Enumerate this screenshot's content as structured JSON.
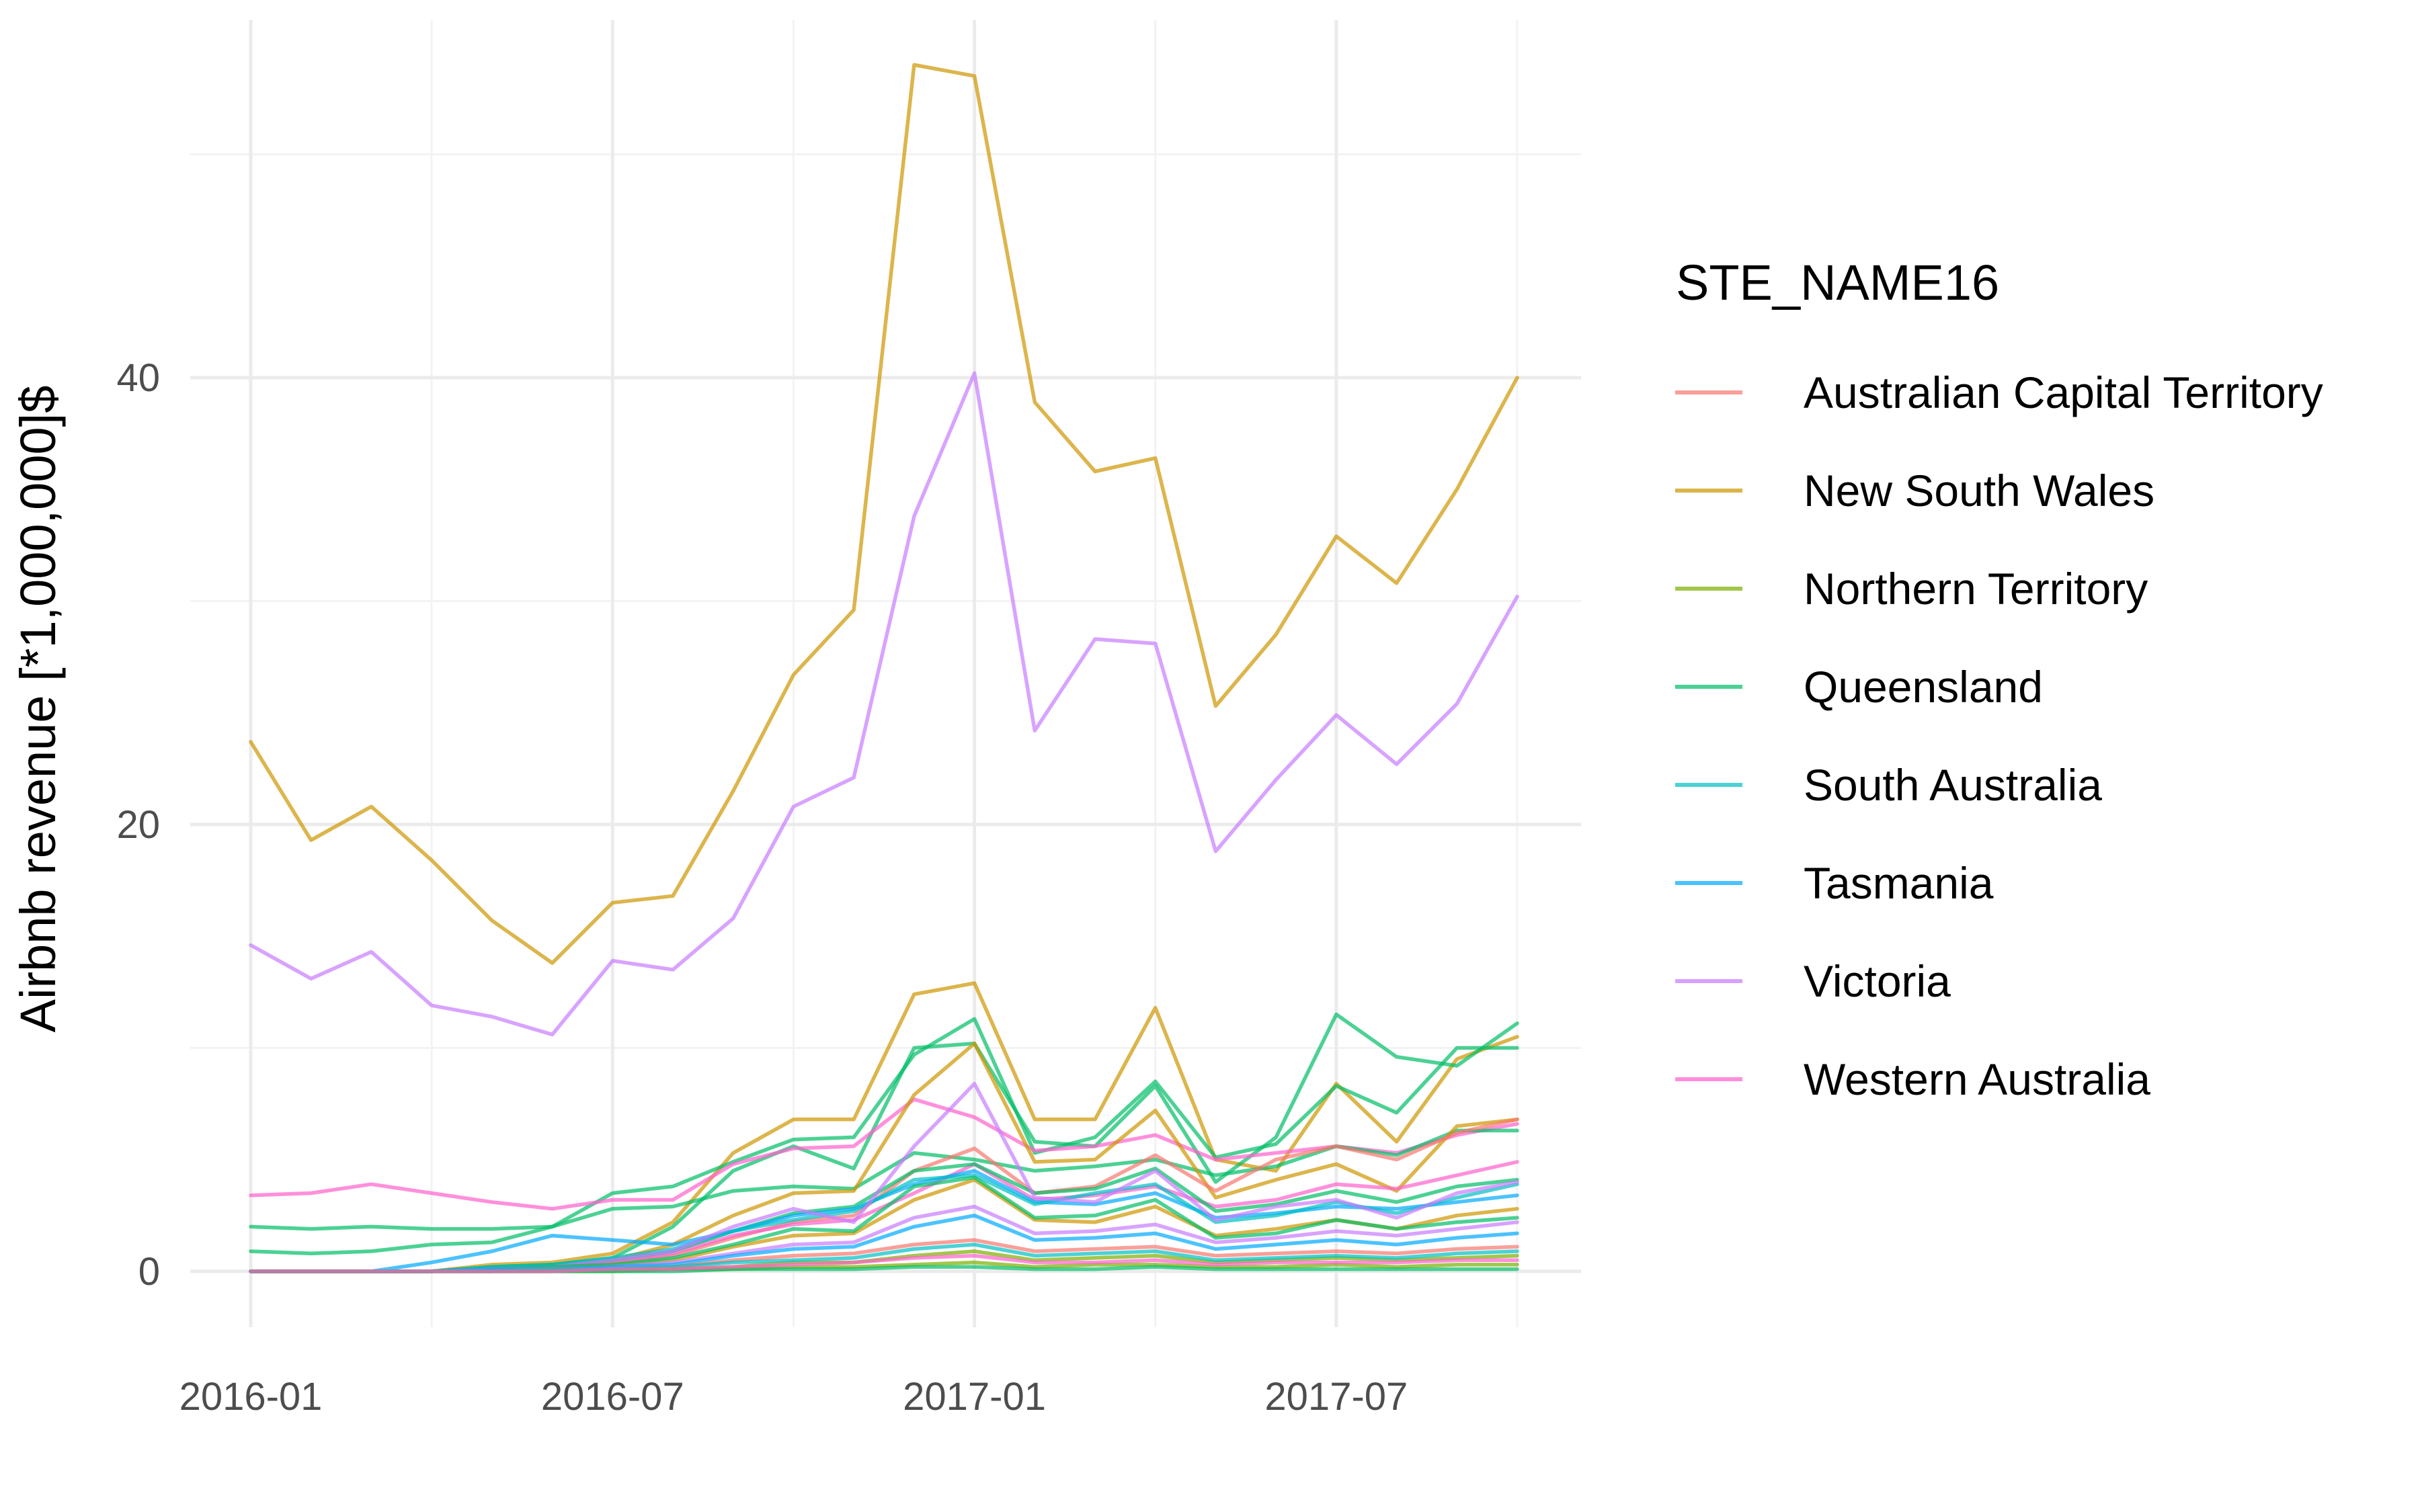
{
  "chart_data": {
    "type": "line",
    "title": "",
    "xlabel": "",
    "ylabel": "Airbnb revenue [*1,000,000]$",
    "x": [
      "2016-01",
      "2016-02",
      "2016-03",
      "2016-04",
      "2016-05",
      "2016-06",
      "2016-07",
      "2016-08",
      "2016-09",
      "2016-10",
      "2016-11",
      "2016-12",
      "2017-01",
      "2017-02",
      "2017-03",
      "2017-04",
      "2017-05",
      "2017-06",
      "2017-07",
      "2017-08",
      "2017-09",
      "2017-10"
    ],
    "x_tick_labels": [
      "2016-01",
      "2016-07",
      "2017-01",
      "2017-07"
    ],
    "y_ticks": [
      0,
      20,
      40
    ],
    "ylim": [
      -2.5,
      56
    ],
    "grid": true,
    "legend": {
      "title": "STE_NAME16",
      "placement": "right",
      "entries": [
        {
          "name": "Australian Capital Territory",
          "color": "#F8766D"
        },
        {
          "name": "New South Wales",
          "color": "#CD9600"
        },
        {
          "name": "Northern Territory",
          "color": "#7CAE00"
        },
        {
          "name": "Queensland",
          "color": "#00BE67"
        },
        {
          "name": "South Australia",
          "color": "#00BFC4"
        },
        {
          "name": "Tasmania",
          "color": "#00A9FF"
        },
        {
          "name": "Victoria",
          "color": "#C77CFF"
        },
        {
          "name": "Western Australia",
          "color": "#FF61CC"
        }
      ]
    },
    "series": [
      {
        "state": "New South Wales",
        "color": "#CD9600",
        "values": [
          23.7,
          19.3,
          20.8,
          18.4,
          15.7,
          13.8,
          16.5,
          16.8,
          21.5,
          26.7,
          29.6,
          54,
          53.5,
          38.9,
          35.8,
          36.4,
          25.3,
          28.5,
          32.9,
          30.8,
          35,
          40
        ]
      },
      {
        "state": "Victoria",
        "color": "#C77CFF",
        "values": [
          14.6,
          13.1,
          14.3,
          11.9,
          11.4,
          10.6,
          13.9,
          13.5,
          15.8,
          20.8,
          22.1,
          33.8,
          40.2,
          24.2,
          28.3,
          28.1,
          18.8,
          22,
          24.9,
          22.7,
          25.4,
          30.2
        ]
      },
      {
        "state": "New South Wales",
        "color": "#CD9600",
        "values": [
          0,
          0,
          0,
          0,
          0.3,
          0.4,
          0.8,
          2.2,
          5.3,
          6.8,
          6.8,
          12.4,
          12.9,
          6.8,
          6.8,
          11.8,
          5,
          4.5,
          8.4,
          5.8,
          9.5,
          10.5
        ]
      },
      {
        "state": "Queensland",
        "color": "#00BE67",
        "values": [
          0,
          0,
          0,
          0,
          0.2,
          0.3,
          0.6,
          2,
          4.5,
          5.6,
          4.6,
          10,
          10.2,
          5.8,
          5.6,
          8.3,
          4,
          6,
          11.5,
          9.6,
          9.2,
          11.1
        ]
      },
      {
        "state": "Queensland",
        "color": "#00BE67",
        "values": [
          2,
          1.9,
          2,
          1.9,
          1.9,
          2,
          3.5,
          3.8,
          4.9,
          5.9,
          6,
          9.7,
          11.3,
          5.3,
          6,
          8.5,
          5.1,
          5.7,
          8.3,
          7.1,
          10,
          10
        ]
      },
      {
        "state": "Western Australia",
        "color": "#FF61CC",
        "values": [
          3.4,
          3.5,
          3.9,
          3.5,
          3.1,
          2.8,
          3.2,
          3.2,
          4.8,
          5.5,
          5.6,
          7.7,
          6.9,
          5.4,
          5.6,
          6.1,
          5,
          5.3,
          5.6,
          5.3,
          6.1,
          6.6
        ]
      },
      {
        "state": "Queensland",
        "color": "#00BE67",
        "values": [
          0.9,
          0.8,
          0.9,
          1.2,
          1.3,
          2,
          2.8,
          2.9,
          3.6,
          3.8,
          3.7,
          5.3,
          5,
          4.5,
          4.7,
          5,
          4.3,
          4.7,
          5.6,
          5.2,
          6.3,
          6.3
        ]
      },
      {
        "state": "New South Wales",
        "color": "#CD9600",
        "values": [
          0,
          0,
          0,
          0,
          0.2,
          0.3,
          0.5,
          1.2,
          2.5,
          3.5,
          3.6,
          7.9,
          10.2,
          4.9,
          5,
          7.2,
          3.3,
          4.1,
          4.8,
          3.6,
          6.5,
          6.8
        ]
      },
      {
        "state": "Australian Capital Territory",
        "color": "#F8766D",
        "values": [
          0,
          0,
          0,
          0,
          0.1,
          0.2,
          0.4,
          0.7,
          1.5,
          2.2,
          2.5,
          4.5,
          5.5,
          3.5,
          3.8,
          5.2,
          3.6,
          5,
          5.6,
          5,
          6.2,
          6.8
        ]
      },
      {
        "state": "Western Australia",
        "color": "#FF61CC",
        "values": [
          0,
          0,
          0,
          0,
          0.1,
          0.2,
          0.4,
          0.8,
          1.6,
          2.1,
          2.3,
          3.5,
          4.8,
          3.2,
          3.4,
          3.8,
          2.9,
          3.2,
          3.9,
          3.7,
          4.3,
          4.9
        ]
      },
      {
        "state": "Queensland",
        "color": "#00BE67",
        "values": [
          0,
          0,
          0,
          0,
          0.2,
          0.3,
          0.5,
          0.9,
          1.8,
          2.6,
          2.9,
          4.5,
          4.8,
          3.5,
          3.7,
          4.6,
          2.7,
          3,
          3.6,
          3.1,
          3.8,
          4.1
        ]
      },
      {
        "state": "Tasmania",
        "color": "#00A9FF",
        "values": [
          0,
          0,
          0,
          0.4,
          0.9,
          1.6,
          1.4,
          1.2,
          1.8,
          2.5,
          2.8,
          3.9,
          4.5,
          3.1,
          3,
          3.5,
          2.4,
          2.6,
          2.9,
          2.8,
          3.1,
          3.4
        ]
      },
      {
        "state": "South Australia",
        "color": "#00BFC4",
        "values": [
          0,
          0,
          0,
          0,
          0.2,
          0.3,
          0.6,
          1,
          1.8,
          2.3,
          2.7,
          4.1,
          4.3,
          3,
          3.5,
          3.9,
          2.2,
          2.5,
          3.1,
          2.6,
          3.3,
          3.9
        ]
      },
      {
        "state": "Victoria",
        "color": "#C77CFF",
        "values": [
          0,
          0,
          0,
          0,
          0.1,
          0.2,
          0.5,
          0.9,
          2,
          2.8,
          2.2,
          5.6,
          8.4,
          3.3,
          3.1,
          4.5,
          2.3,
          2.9,
          3.2,
          2.4,
          3.5,
          4
        ]
      },
      {
        "state": "New South Wales",
        "color": "#CD9600",
        "values": [
          0,
          0,
          0,
          0,
          0.1,
          0.1,
          0.3,
          0.5,
          1.1,
          1.6,
          1.7,
          3.2,
          4.1,
          2.3,
          2.2,
          2.9,
          1.6,
          1.9,
          2.3,
          1.9,
          2.5,
          2.8
        ]
      },
      {
        "state": "Queensland",
        "color": "#00BE67",
        "values": [
          0,
          0,
          0,
          0,
          0.1,
          0.2,
          0.3,
          0.6,
          1.2,
          1.9,
          1.8,
          3.8,
          4.2,
          2.4,
          2.5,
          3.2,
          1.5,
          1.7,
          2.3,
          1.9,
          2.2,
          2.4
        ]
      },
      {
        "state": "Victoria",
        "color": "#C77CFF",
        "values": [
          0,
          0,
          0,
          0,
          0.1,
          0.1,
          0.2,
          0.4,
          0.8,
          1.2,
          1.3,
          2.4,
          2.9,
          1.7,
          1.8,
          2.1,
          1.3,
          1.5,
          1.8,
          1.6,
          1.9,
          2.2
        ]
      },
      {
        "state": "Tasmania",
        "color": "#00A9FF",
        "values": [
          0,
          0,
          0,
          0,
          0.1,
          0.1,
          0.2,
          0.3,
          0.7,
          1,
          1.1,
          2,
          2.5,
          1.4,
          1.5,
          1.7,
          1,
          1.2,
          1.4,
          1.2,
          1.5,
          1.7
        ]
      },
      {
        "state": "Australian Capital Territory",
        "color": "#F8766D",
        "values": [
          0,
          0,
          0,
          0,
          0,
          0.1,
          0.1,
          0.2,
          0.5,
          0.7,
          0.8,
          1.2,
          1.4,
          0.9,
          1,
          1.1,
          0.7,
          0.8,
          0.9,
          0.8,
          1,
          1.1
        ]
      },
      {
        "state": "Northern Territory",
        "color": "#7CAE00",
        "values": [
          0,
          0,
          0,
          0,
          0,
          0,
          0.1,
          0.1,
          0.2,
          0.4,
          0.4,
          0.7,
          0.9,
          0.5,
          0.6,
          0.7,
          0.4,
          0.5,
          0.6,
          0.5,
          0.6,
          0.7
        ]
      },
      {
        "state": "South Australia",
        "color": "#00BFC4",
        "values": [
          0,
          0,
          0,
          0,
          0,
          0.1,
          0.1,
          0.2,
          0.4,
          0.5,
          0.6,
          1,
          1.2,
          0.7,
          0.8,
          0.9,
          0.5,
          0.6,
          0.7,
          0.6,
          0.8,
          0.9
        ]
      },
      {
        "state": "Northern Territory",
        "color": "#7CAE00",
        "values": [
          0,
          0,
          0,
          0,
          0,
          0,
          0,
          0.1,
          0.1,
          0.2,
          0.2,
          0.3,
          0.4,
          0.2,
          0.3,
          0.3,
          0.2,
          0.2,
          0.3,
          0.2,
          0.3,
          0.3
        ]
      },
      {
        "state": "Queensland",
        "color": "#00BE67",
        "values": [
          0,
          0,
          0,
          0,
          0,
          0,
          0,
          0,
          0.1,
          0.1,
          0.1,
          0.2,
          0.2,
          0.1,
          0.1,
          0.2,
          0.1,
          0.1,
          0.1,
          0.1,
          0.1,
          0.1
        ]
      },
      {
        "state": "Western Australia",
        "color": "#FF61CC",
        "values": [
          0,
          0,
          0,
          0,
          0,
          0,
          0.1,
          0.1,
          0.2,
          0.3,
          0.4,
          0.6,
          0.7,
          0.4,
          0.4,
          0.5,
          0.3,
          0.4,
          0.4,
          0.4,
          0.5,
          0.5
        ]
      }
    ]
  }
}
